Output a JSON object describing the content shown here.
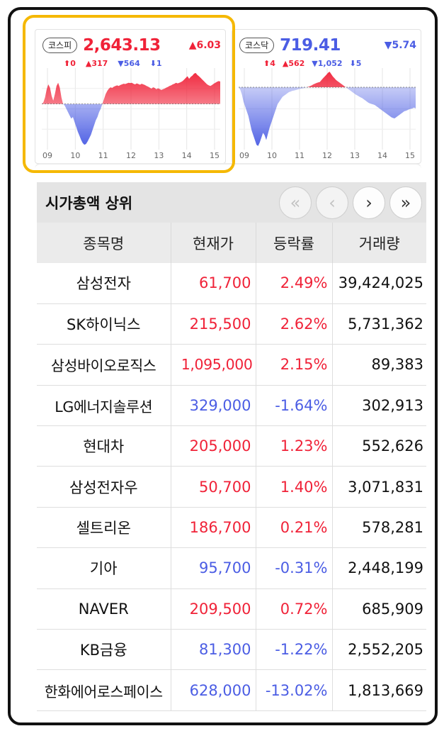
{
  "indices": {
    "kospi": {
      "name": "코스피",
      "value": "2,643.13",
      "change": "▲6.03",
      "direction": "up",
      "stats": {
        "upper": "⬆0",
        "up": "▲317",
        "down": "▼564",
        "lower": "⬇1"
      },
      "hours": [
        "09",
        "10",
        "11",
        "12",
        "13",
        "14",
        "15"
      ],
      "series": [
        0.35,
        0.4,
        0.55,
        0.8,
        0.95,
        0.85,
        0.6,
        0.45,
        0.65,
        0.9,
        1.0,
        0.85,
        0.55,
        0.35,
        0.3,
        0.2,
        0.1,
        0.0,
        -0.1,
        -0.05,
        -0.2,
        -0.35,
        -0.5,
        -0.62,
        -0.75,
        -0.85,
        -0.9,
        -0.88,
        -0.8,
        -0.7,
        -0.6,
        -0.45,
        -0.3,
        -0.15,
        -0.05,
        0.1,
        0.2,
        0.35,
        0.5,
        0.65,
        0.75,
        0.82,
        0.86,
        0.84,
        0.88,
        0.9,
        0.92,
        0.9,
        0.93,
        0.95,
        0.97,
        0.96,
        0.98,
        1.0,
        0.99,
        1.0,
        0.97,
        0.95,
        0.98,
        0.96,
        0.94,
        0.97,
        0.95,
        0.93,
        0.9,
        0.88,
        0.85,
        0.82,
        0.86,
        0.84,
        0.8,
        0.83,
        0.81,
        0.78,
        0.8,
        0.82,
        0.85,
        0.87,
        0.9,
        0.92,
        0.95,
        0.97,
        1.0,
        0.98,
        1.0,
        1.02,
        1.05,
        1.1,
        1.15,
        1.2,
        1.12,
        1.18,
        1.22,
        1.28,
        1.3,
        1.24,
        1.2,
        1.15,
        1.1,
        1.05,
        1.0,
        0.95,
        0.92,
        0.9,
        0.93,
        0.97,
        1.0,
        1.03,
        1.05,
        1.04
      ]
    },
    "kosdaq": {
      "name": "코스닥",
      "value": "719.41",
      "change": "▼5.74",
      "direction": "down",
      "stats": {
        "upper": "⬆4",
        "up": "▲562",
        "down": "▼1,052",
        "lower": "⬇5"
      },
      "hours": [
        "09",
        "10",
        "11",
        "12",
        "13",
        "14",
        "15"
      ],
      "series": [
        1.0,
        0.9,
        0.7,
        0.4,
        0.2,
        0.0,
        -0.2,
        -0.5,
        -0.8,
        -1.0,
        -1.2,
        -1.4,
        -1.45,
        -1.3,
        -1.1,
        -0.9,
        -1.0,
        -1.2,
        -0.95,
        -0.7,
        -0.5,
        -0.3,
        -0.1,
        0.1,
        0.3,
        0.4,
        0.5,
        0.6,
        0.65,
        0.7,
        0.75,
        0.8,
        0.82,
        0.85,
        0.86,
        0.88,
        0.9,
        0.92,
        0.94,
        0.95,
        0.96,
        0.98,
        1.0,
        1.02,
        1.05,
        1.08,
        1.12,
        1.15,
        1.18,
        1.2,
        1.22,
        1.3,
        1.38,
        1.45,
        1.52,
        1.6,
        1.65,
        1.55,
        1.45,
        1.38,
        1.3,
        1.25,
        1.2,
        1.15,
        1.1,
        1.05,
        1.0,
        0.95,
        0.9,
        0.85,
        0.8,
        0.75,
        0.7,
        0.66,
        0.62,
        0.58,
        0.55,
        0.5,
        0.45,
        0.4,
        0.35,
        0.32,
        0.3,
        0.28,
        0.25,
        0.2,
        0.15,
        0.1,
        0.05,
        0.0,
        -0.05,
        -0.1,
        -0.15,
        -0.2,
        -0.25,
        -0.28,
        -0.3,
        -0.25,
        -0.2,
        -0.15,
        -0.1,
        -0.05,
        0.0,
        0.02,
        0.05,
        0.08,
        0.1,
        0.12,
        0.15,
        0.12
      ]
    }
  },
  "colors": {
    "up": "#f02238",
    "down": "#4b5de4",
    "highlight": "#f5b800"
  },
  "ranking": {
    "title": "시가총액 상위",
    "pager": [
      "«",
      "‹",
      "›",
      "»"
    ],
    "columns": [
      "종목명",
      "현재가",
      "등락률",
      "거래량"
    ],
    "rows": [
      {
        "name": "삼성전자",
        "price": "61,700",
        "rate": "2.49%",
        "volume": "39,424,025",
        "direction": "up"
      },
      {
        "name": "SK하이닉스",
        "price": "215,500",
        "rate": "2.62%",
        "volume": "5,731,362",
        "direction": "up"
      },
      {
        "name": "삼성바이오로직스",
        "price": "1,095,000",
        "rate": "2.15%",
        "volume": "89,383",
        "direction": "up"
      },
      {
        "name": "LG에너지솔루션",
        "price": "329,000",
        "rate": "-1.64%",
        "volume": "302,913",
        "direction": "down"
      },
      {
        "name": "현대차",
        "price": "205,000",
        "rate": "1.23%",
        "volume": "552,626",
        "direction": "up"
      },
      {
        "name": "삼성전자우",
        "price": "50,700",
        "rate": "1.40%",
        "volume": "3,071,831",
        "direction": "up"
      },
      {
        "name": "셀트리온",
        "price": "186,700",
        "rate": "0.21%",
        "volume": "578,281",
        "direction": "up"
      },
      {
        "name": "기아",
        "price": "95,700",
        "rate": "-0.31%",
        "volume": "2,448,199",
        "direction": "down"
      },
      {
        "name": "NAVER",
        "price": "209,500",
        "rate": "0.72%",
        "volume": "685,909",
        "direction": "up"
      },
      {
        "name": "KB금융",
        "price": "81,300",
        "rate": "-1.22%",
        "volume": "2,552,205",
        "direction": "down"
      },
      {
        "name": "한화에어로스페이스",
        "price": "628,000",
        "rate": "-13.02%",
        "volume": "1,813,669",
        "direction": "down"
      }
    ]
  }
}
